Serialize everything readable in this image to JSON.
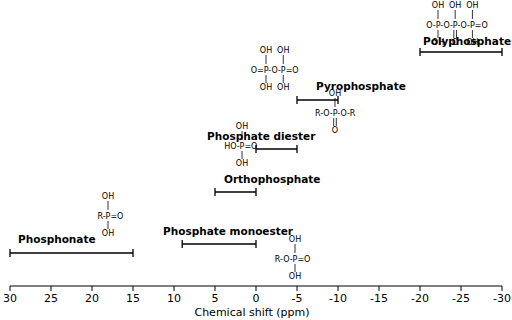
{
  "chart_data": {
    "type": "range",
    "orientation": "horizontal",
    "color": "#000000",
    "categories": [
      "Phosphonate",
      "Phosphate monoester",
      "Orthophosphate",
      "Phosphate diester",
      "Pyrophosphate",
      "Polyphosphate"
    ],
    "values": [
      [
        30,
        15
      ],
      [
        9,
        0
      ],
      [
        5,
        0
      ],
      [
        0,
        -5
      ],
      [
        -5,
        -10
      ],
      [
        -20,
        -30
      ]
    ],
    "structures": [
      {
        "top": [
          "OH"
        ],
        "middle": "R-P=O",
        "bottom": [
          "OH"
        ]
      },
      {
        "top": [
          "OH"
        ],
        "middle": "R-O-P=O",
        "bottom": [
          "OH"
        ]
      },
      {
        "top": [
          "OH"
        ],
        "middle": "HO-P=O",
        "bottom": [
          "OH"
        ]
      },
      {
        "top": [
          "OH"
        ],
        "middle": "R-O-P-O-R",
        "bottom": [
          "O"
        ]
      },
      {
        "top": [
          "OH",
          "OH"
        ],
        "middle": "O=P-O-P=O",
        "bottom": [
          "OH",
          "OH"
        ]
      },
      {
        "top": [
          "OH",
          "OH",
          "OH"
        ],
        "middle": "O-P-O-P-O-P=O",
        "bottom": [
          "OH",
          "O",
          "OH"
        ]
      }
    ],
    "x_label": "Chemical shift (ppm)",
    "xlim": [
      30,
      -30
    ],
    "xticks": [
      30,
      25,
      20,
      15,
      10,
      5,
      0,
      -5,
      -10,
      -15,
      -20,
      -25,
      -30
    ]
  }
}
